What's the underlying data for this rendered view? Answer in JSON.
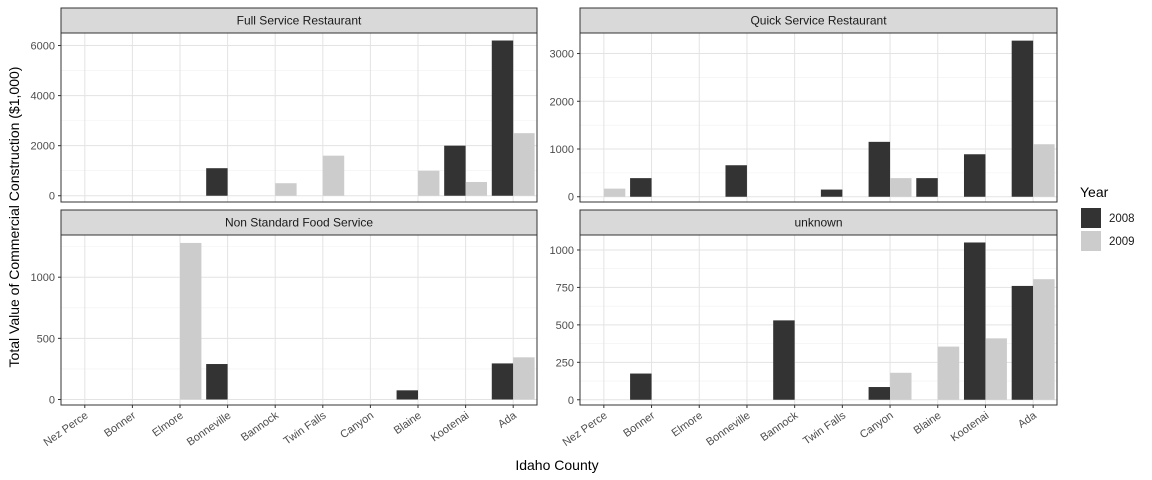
{
  "chart_data": {
    "type": "bar",
    "layout": "facet_wrap 2x2, free y scales",
    "xlabel": "Idaho County",
    "ylabel": "Total Value of Commercial Construction ($1,000)",
    "categories": [
      "Nez Perce",
      "Bonner",
      "Elmore",
      "Bonneville",
      "Bannock",
      "Twin Falls",
      "Canyon",
      "Blaine",
      "Kootenai",
      "Ada"
    ],
    "legend": {
      "title": "Year",
      "position": "right",
      "entries": [
        {
          "name": "2008",
          "color": "#333333"
        },
        {
          "name": "2009",
          "color": "#cccccc"
        }
      ]
    },
    "grid": true,
    "panels": [
      {
        "title": "Full Service Restaurant",
        "ylim": [
          -250,
          6500
        ],
        "yticks": [
          0,
          2000,
          4000,
          6000
        ],
        "yticklabels": [
          "0",
          "2000",
          "4000",
          "6000"
        ],
        "series": [
          {
            "name": "2008",
            "values": [
              null,
              null,
              null,
              1100,
              null,
              null,
              null,
              null,
              2000,
              6200
            ]
          },
          {
            "name": "2009",
            "values": [
              null,
              null,
              null,
              null,
              500,
              1600,
              null,
              1000,
              550,
              2500
            ]
          }
        ]
      },
      {
        "title": "Quick Service Restaurant",
        "ylim": [
          -110,
          3430
        ],
        "yticks": [
          0,
          1000,
          2000,
          3000
        ],
        "yticklabels": [
          "0",
          "1000",
          "2000",
          "3000"
        ],
        "series": [
          {
            "name": "2008",
            "values": [
              null,
              390,
              null,
              660,
              null,
              150,
              1150,
              390,
              890,
              3270
            ]
          },
          {
            "name": "2009",
            "values": [
              170,
              null,
              null,
              null,
              null,
              null,
              390,
              null,
              null,
              1100
            ]
          }
        ]
      },
      {
        "title": "Non Standard Food Service",
        "ylim": [
          -45,
          1345
        ],
        "yticks": [
          0,
          500,
          1000
        ],
        "yticklabels": [
          "0",
          "500",
          "1000"
        ],
        "series": [
          {
            "name": "2008",
            "values": [
              null,
              null,
              null,
              290,
              null,
              null,
              null,
              75,
              null,
              295
            ]
          },
          {
            "name": "2009",
            "values": [
              null,
              null,
              1280,
              null,
              null,
              null,
              null,
              null,
              null,
              345
            ]
          }
        ]
      },
      {
        "title": "unknown",
        "ylim": [
          -35,
          1100
        ],
        "yticks": [
          0,
          250,
          500,
          750,
          1000
        ],
        "yticklabels": [
          "0",
          "250",
          "500",
          "750",
          "1000"
        ],
        "series": [
          {
            "name": "2008",
            "values": [
              null,
              175,
              null,
              null,
              530,
              null,
              85,
              null,
              1050,
              760
            ]
          },
          {
            "name": "2009",
            "values": [
              null,
              null,
              null,
              null,
              null,
              null,
              180,
              355,
              410,
              805
            ]
          }
        ]
      }
    ]
  }
}
